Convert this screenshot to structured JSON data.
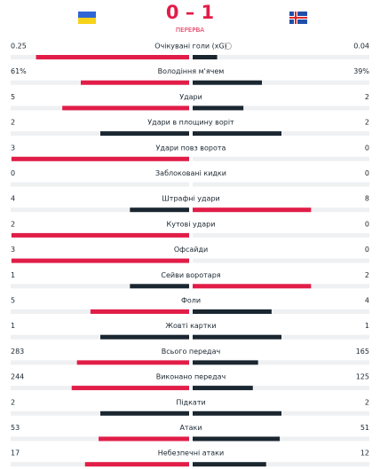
{
  "header": {
    "score": "0 – 1",
    "status": "ПЕРЕРВА"
  },
  "rows": [
    {
      "label": "Очікувані голи (xG)",
      "home": 0.25,
      "away": 0.04
    },
    {
      "label": "Володіння м'ячем",
      "home": 61,
      "away": 39,
      "home_label": "61%",
      "away_label": "39%"
    },
    {
      "label": "Удари",
      "home": 5,
      "away": 2
    },
    {
      "label": "Удари в площину воріт",
      "home": 2,
      "away": 2
    },
    {
      "label": "Удари повз ворота",
      "home": 3,
      "away": 0
    },
    {
      "label": "Заблоковані кидки",
      "home": 0,
      "away": 0
    },
    {
      "label": "Штрафні удари",
      "home": 4,
      "away": 8
    },
    {
      "label": "Кутові удари",
      "home": 2,
      "away": 0
    },
    {
      "label": "Офсайди",
      "home": 3,
      "away": 0
    },
    {
      "label": "Сейви воротаря",
      "home": 1,
      "away": 2
    },
    {
      "label": "Фоли",
      "home": 5,
      "away": 4
    },
    {
      "label": "Жовті картки",
      "home": 1,
      "away": 1
    },
    {
      "label": "Всього передач",
      "home": 283,
      "away": 165
    },
    {
      "label": "Виконано передач",
      "home": 244,
      "away": 125
    },
    {
      "label": "Підкати",
      "home": 2,
      "away": 2
    },
    {
      "label": "Атаки",
      "home": 53,
      "away": 51
    },
    {
      "label": "Небезпечні атаки",
      "home": 17,
      "away": 12
    }
  ]
}
